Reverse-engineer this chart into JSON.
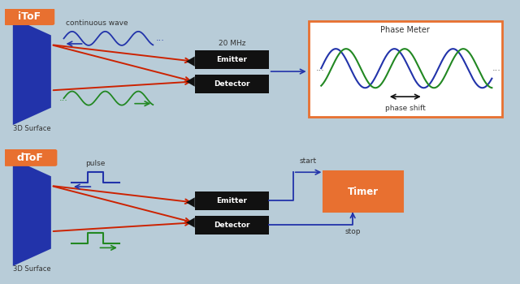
{
  "bg_color": "#b8ccd8",
  "panel_color": "#f0f0f0",
  "top_label": "iToF",
  "bottom_label": "dToF",
  "label_bg": "#e87030",
  "label_text_color": "#ffffff",
  "surface_color": "#2233aa",
  "emitter_box_color": "#111111",
  "emitter_text_color": "#ffffff",
  "phase_meter_border": "#e87030",
  "timer_box_color": "#e87030",
  "timer_text_color": "#ffffff",
  "arrow_red": "#cc2200",
  "arrow_blue": "#2233aa",
  "arrow_green": "#228822",
  "wave_blue": "#2233aa",
  "wave_green": "#228822",
  "continuous_wave_label": "continuous wave",
  "twenty_mhz_label": "20 MHz",
  "phase_meter_label": "Phase Meter",
  "phase_shift_label": "phase shift",
  "emitter_label": "Emitter",
  "detector_label": "Detector",
  "pulse_label": "pulse",
  "start_label": "start",
  "stop_label": "stop",
  "timer_label": "Timer",
  "surface_label": "3D Surface"
}
